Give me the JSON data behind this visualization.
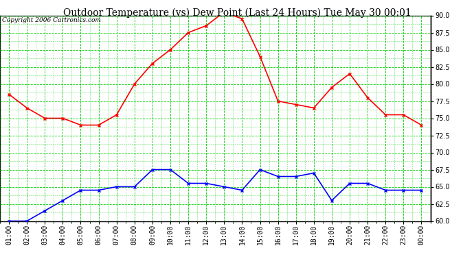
{
  "title": "Outdoor Temperature (vs) Dew Point (Last 24 Hours) Tue May 30 00:01",
  "copyright": "Copyright 2006 Cartronics.com",
  "x_labels": [
    "01:00",
    "02:00",
    "03:00",
    "04:00",
    "05:00",
    "06:00",
    "07:00",
    "08:00",
    "09:00",
    "10:00",
    "11:00",
    "12:00",
    "13:00",
    "14:00",
    "15:00",
    "16:00",
    "17:00",
    "18:00",
    "19:00",
    "20:00",
    "21:00",
    "22:00",
    "23:00",
    "00:00"
  ],
  "temp_values": [
    78.5,
    76.5,
    75.0,
    75.0,
    74.0,
    74.0,
    75.5,
    80.0,
    83.0,
    85.0,
    87.5,
    88.5,
    90.5,
    89.5,
    84.0,
    77.5,
    77.0,
    76.5,
    79.5,
    81.5,
    78.0,
    75.5,
    75.5,
    74.0
  ],
  "dew_values": [
    60.0,
    60.0,
    61.5,
    63.0,
    64.5,
    64.5,
    65.0,
    65.0,
    67.5,
    67.5,
    65.5,
    65.5,
    65.0,
    64.5,
    67.5,
    66.5,
    66.5,
    67.0,
    63.0,
    65.5,
    65.5,
    64.5,
    64.5,
    64.5
  ],
  "temp_color": "#ff0000",
  "dew_color": "#0000ff",
  "bg_color": "#ffffff",
  "plot_bg_color": "#ffffff",
  "grid_color": "#00cc00",
  "ylim": [
    60.0,
    90.0
  ],
  "yticks": [
    60.0,
    62.5,
    65.0,
    67.5,
    70.0,
    72.5,
    75.0,
    77.5,
    80.0,
    82.5,
    85.0,
    87.5,
    90.0
  ],
  "title_fontsize": 10,
  "copyright_fontsize": 6.5,
  "tick_fontsize": 7,
  "marker": "x",
  "marker_size": 3.5,
  "line_width": 1.2
}
